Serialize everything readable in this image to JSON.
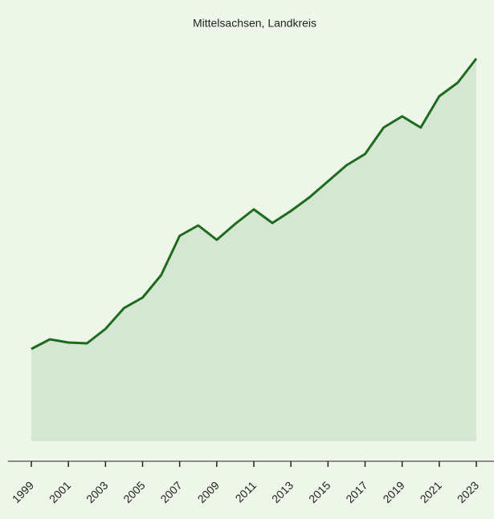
{
  "chart_data": {
    "type": "area",
    "title": "Mittelsachsen, Landkreis",
    "x": [
      1999,
      2000,
      2001,
      2002,
      2003,
      2004,
      2005,
      2006,
      2007,
      2008,
      2009,
      2010,
      2011,
      2012,
      2013,
      2014,
      2015,
      2016,
      2017,
      2018,
      2019,
      2020,
      2021,
      2022,
      2023
    ],
    "values": [
      115,
      127,
      123,
      122,
      140,
      166,
      179,
      207,
      256,
      269,
      251,
      271,
      289,
      272,
      287,
      304,
      324,
      344,
      358,
      391,
      405,
      391,
      430,
      447,
      477
    ],
    "color": "#1e6b1e",
    "fill": "#d5e6d2",
    "xlim": [
      1999,
      2023
    ],
    "xticks": [
      1999,
      2001,
      2003,
      2005,
      2007,
      2009,
      2011,
      2013,
      2015,
      2017,
      2019,
      2021,
      2023
    ],
    "ylim": [
      0,
      500
    ]
  }
}
